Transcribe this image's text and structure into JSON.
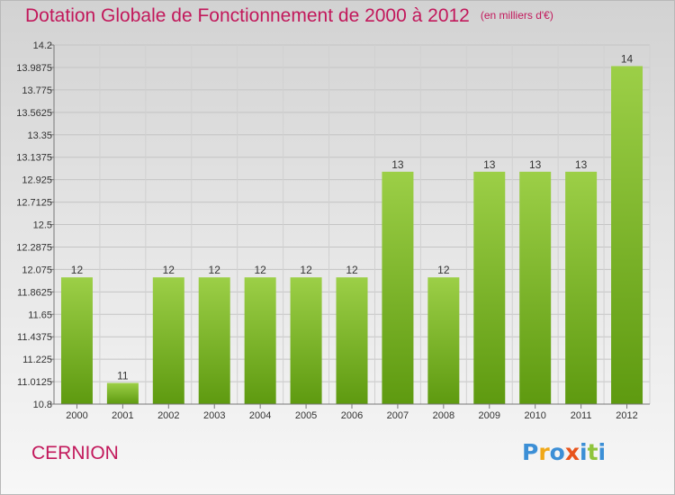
{
  "header": {
    "title": "Dotation Globale de Fonctionnement de 2000 à 2012",
    "unit": "(en milliers d'€)"
  },
  "footer": {
    "commune": "CERNION",
    "brand_letters": [
      "P",
      "r",
      "o",
      "x",
      "i",
      "t",
      "i"
    ],
    "brand_colors": [
      "#3c8fd6",
      "#f0a818",
      "#3c8fd6",
      "#e8541c",
      "#3c8fd6",
      "#8fc43c",
      "#3c8fd6"
    ]
  },
  "chart_data": {
    "type": "bar",
    "title": "Dotation Globale de Fonctionnement de 2000 à 2012",
    "xlabel": "",
    "ylabel": "",
    "categories": [
      "2000",
      "2001",
      "2002",
      "2003",
      "2004",
      "2005",
      "2006",
      "2007",
      "2008",
      "2009",
      "2010",
      "2011",
      "2012"
    ],
    "values": [
      12,
      11,
      12,
      12,
      12,
      12,
      12,
      13,
      12,
      13,
      13,
      13,
      14
    ],
    "value_labels": [
      "12",
      "11",
      "12",
      "12",
      "12",
      "12",
      "12",
      "13",
      "12",
      "13",
      "13",
      "13",
      "14"
    ],
    "y_ticks": [
      "10.8",
      "11.0125",
      "11.225",
      "11.4375",
      "11.65",
      "11.8625",
      "12.075",
      "12.2875",
      "12.5",
      "12.7125",
      "12.925",
      "13.1375",
      "13.35",
      "13.5625",
      "13.775",
      "13.9875",
      "14.2"
    ],
    "ylim": [
      10.8,
      14.2
    ],
    "grid": true,
    "bar_color": "#8cc63e"
  }
}
